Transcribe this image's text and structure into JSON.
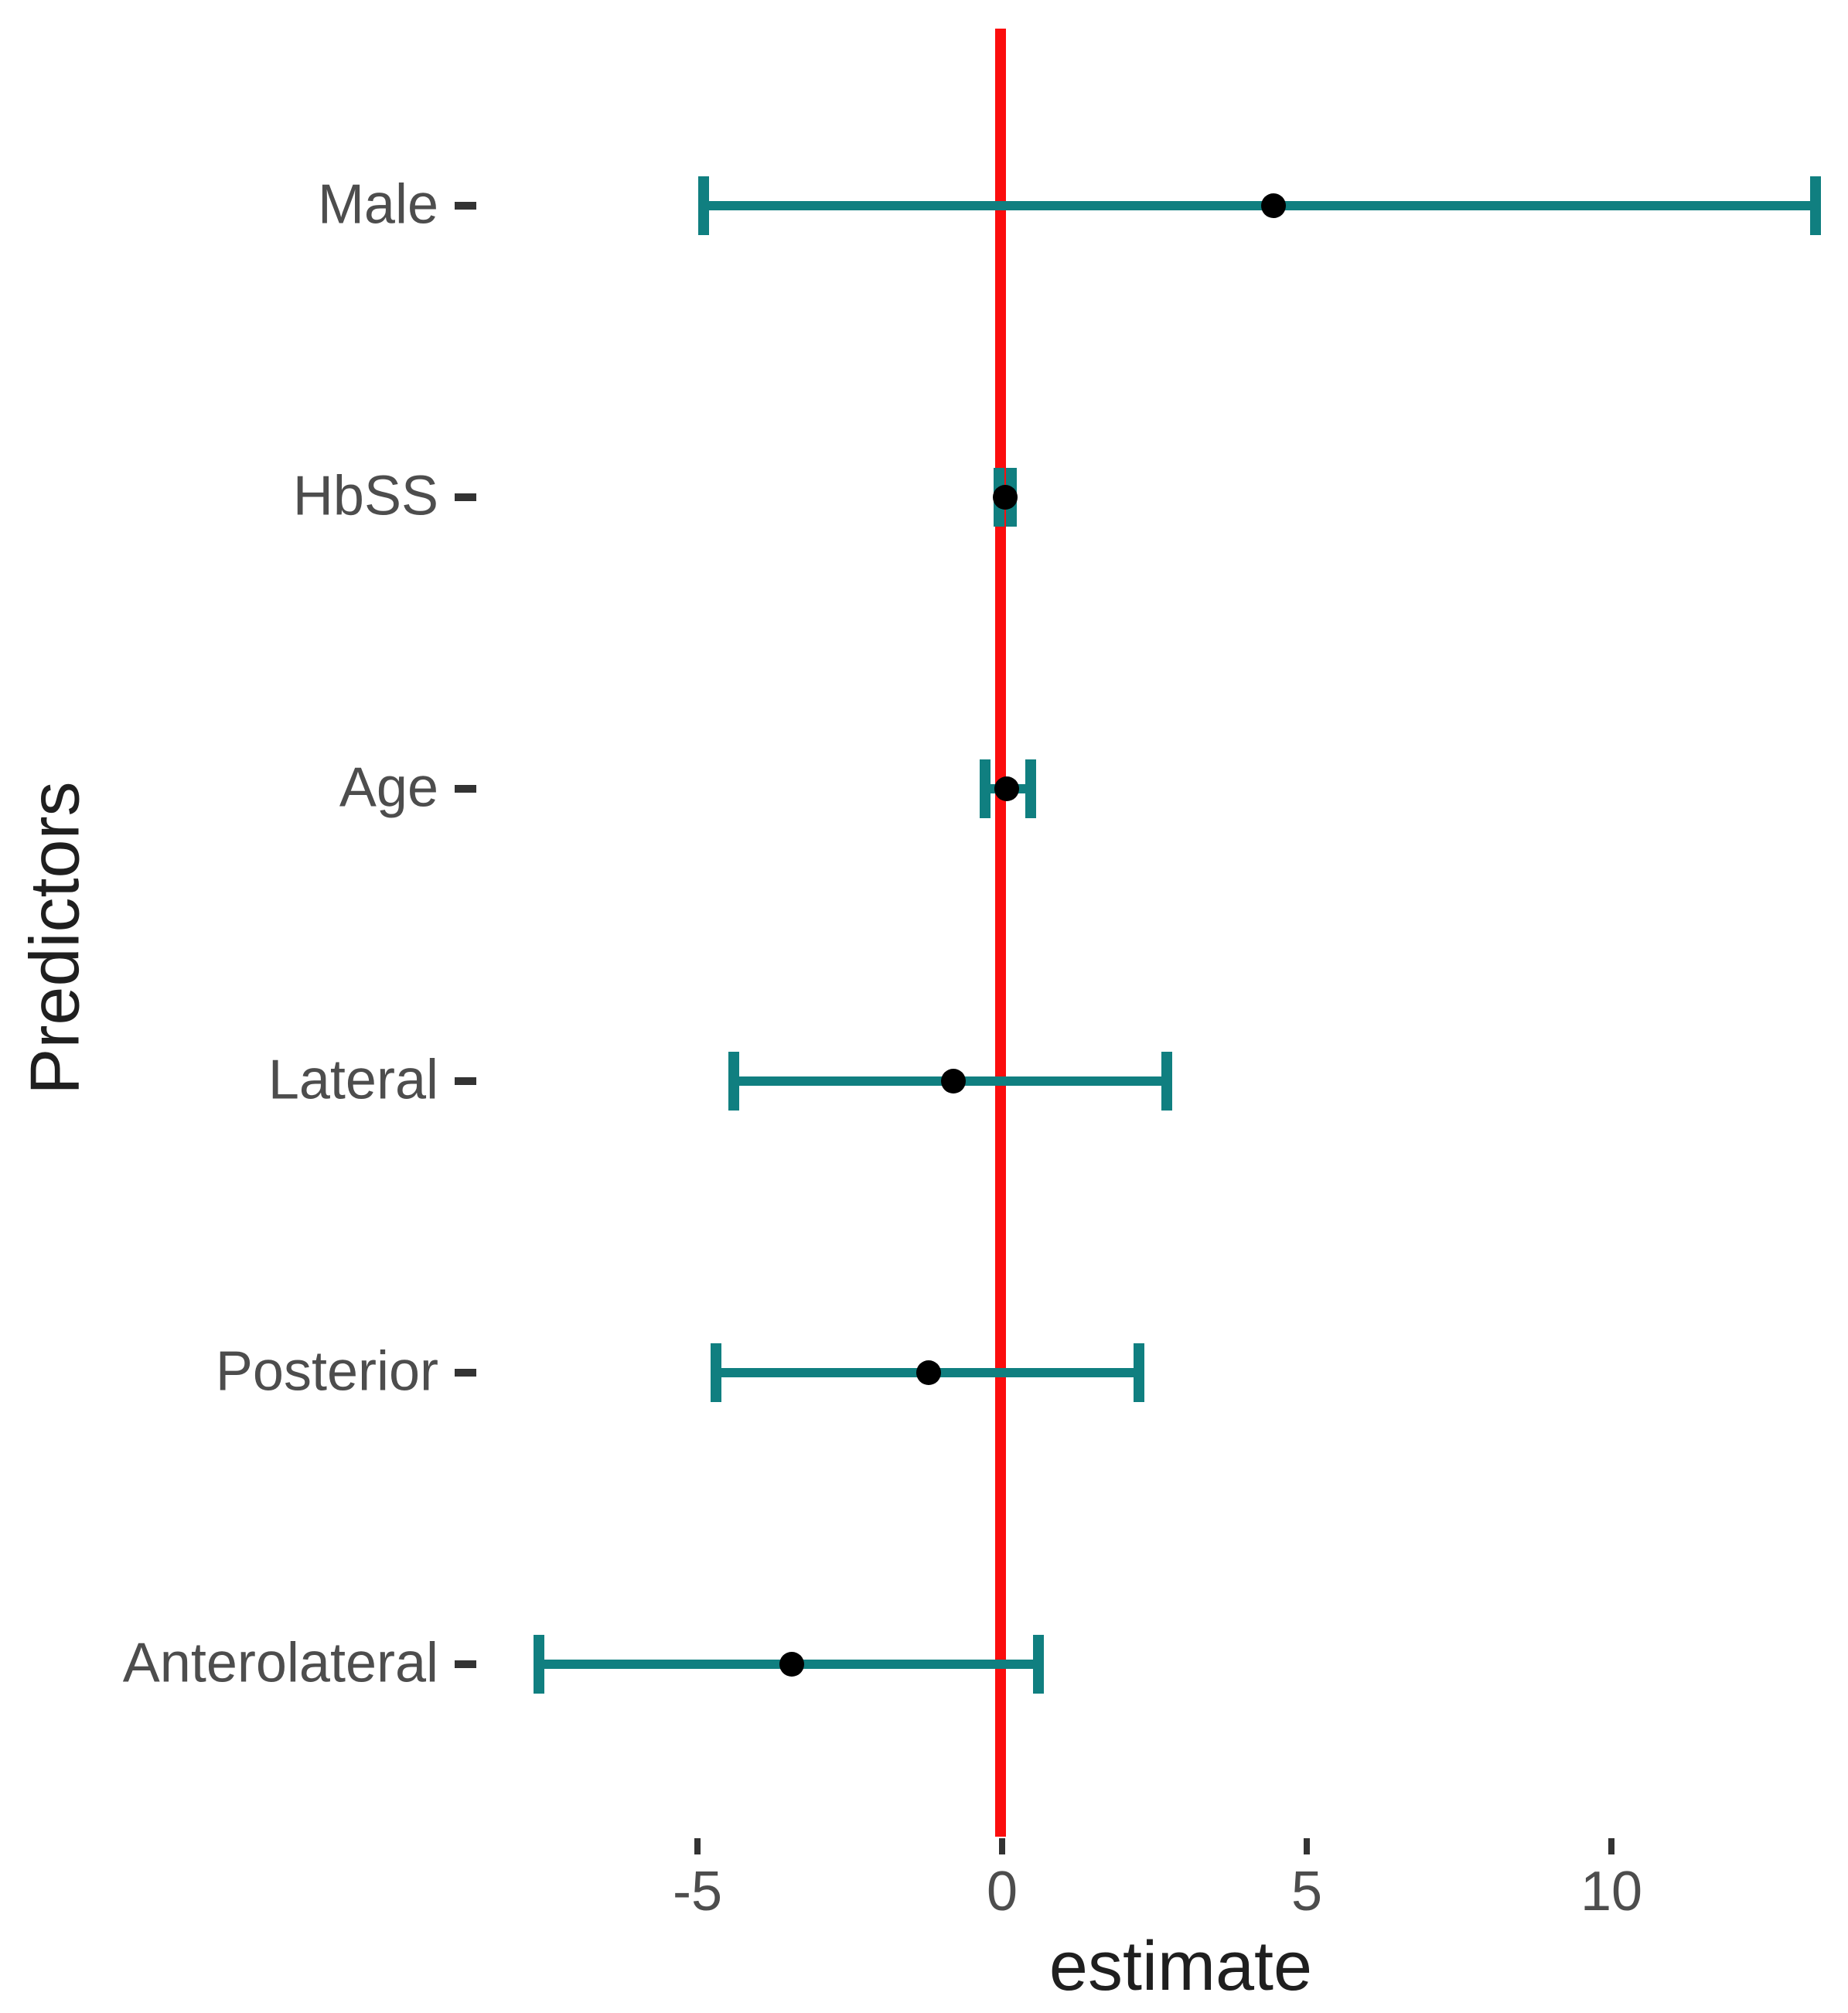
{
  "chart_data": {
    "type": "scatter",
    "subtype": "forest-plot-with-error-bars",
    "title": "",
    "xlabel": "estimate",
    "ylabel": "Predictors",
    "categories": [
      "Male",
      "HbSS",
      "Age",
      "Lateral",
      "Posterior",
      "Anterolateral"
    ],
    "series": [
      {
        "name": "Male",
        "estimate": 4.45,
        "ci_low": -4.9,
        "ci_high": 13.35
      },
      {
        "name": "HbSS",
        "estimate": 0.05,
        "ci_low": -0.05,
        "ci_high": 0.15
      },
      {
        "name": "Age",
        "estimate": 0.07,
        "ci_low": -0.28,
        "ci_high": 0.47
      },
      {
        "name": "Lateral",
        "estimate": -0.8,
        "ci_low": -4.4,
        "ci_high": 2.7
      },
      {
        "name": "Posterior",
        "estimate": -1.2,
        "ci_low": -4.7,
        "ci_high": 2.25
      },
      {
        "name": "Anterolateral",
        "estimate": -3.45,
        "ci_low": -7.6,
        "ci_high": 0.6
      }
    ],
    "x_ticks": [
      -5,
      0,
      5,
      10
    ],
    "x_tick_labels": [
      "-5",
      "0",
      "5",
      "10"
    ],
    "xlim": [
      -7.9,
      13.9
    ],
    "reference_line_x": 0,
    "grid": "off",
    "legend_position": "none",
    "colors": {
      "interval": "#107f80",
      "point": "#000000",
      "reference_line": "#fb0d0d",
      "axis_text": "#4d4d4d",
      "axis_title": "#1f1f1f",
      "tick_mark": "#333333"
    }
  }
}
